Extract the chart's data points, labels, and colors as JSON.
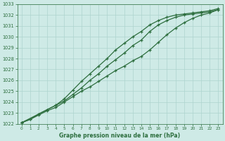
{
  "title": "Graphe pression niveau de la mer (hPa)",
  "xlim": [
    -0.5,
    23.5
  ],
  "ylim": [
    1022,
    1033
  ],
  "yticks": [
    1022,
    1023,
    1024,
    1025,
    1026,
    1027,
    1028,
    1029,
    1030,
    1031,
    1032,
    1033
  ],
  "xticks": [
    0,
    1,
    2,
    3,
    4,
    5,
    6,
    7,
    8,
    9,
    10,
    11,
    12,
    13,
    14,
    15,
    16,
    17,
    18,
    19,
    20,
    21,
    22,
    23
  ],
  "bg_color": "#ceeae6",
  "grid_color": "#aed4ce",
  "line_color": "#2d6e3e",
  "line1_x": [
    0,
    1,
    2,
    3,
    4,
    5,
    6,
    7,
    8,
    9,
    10,
    11,
    12,
    13,
    14,
    15,
    16,
    17,
    18,
    19,
    20,
    21,
    22,
    23
  ],
  "line1": [
    1022.1,
    1022.4,
    1022.8,
    1023.2,
    1023.5,
    1024.0,
    1024.5,
    1025.0,
    1025.4,
    1025.9,
    1026.4,
    1026.9,
    1027.3,
    1027.8,
    1028.2,
    1028.8,
    1029.5,
    1030.2,
    1030.8,
    1031.3,
    1031.7,
    1032.0,
    1032.2,
    1032.5
  ],
  "line2_x": [
    0,
    1,
    2,
    3,
    4,
    5,
    6,
    7,
    8,
    9,
    10,
    11,
    12,
    13,
    14,
    15,
    16,
    17,
    18,
    19,
    20,
    21,
    22,
    23
  ],
  "line2": [
    1022.1,
    1022.4,
    1022.9,
    1023.3,
    1023.7,
    1024.1,
    1024.7,
    1025.3,
    1026.0,
    1026.6,
    1027.3,
    1027.9,
    1028.5,
    1029.2,
    1029.7,
    1030.5,
    1031.1,
    1031.5,
    1031.8,
    1032.0,
    1032.1,
    1032.2,
    1032.3,
    1032.5
  ],
  "line3_x": [
    0,
    2,
    3,
    4,
    5,
    6,
    7,
    8,
    9,
    10,
    11,
    12,
    13,
    14,
    15,
    16,
    17,
    18,
    19,
    20,
    21,
    22,
    23
  ],
  "line3": [
    1022.1,
    1022.9,
    1023.3,
    1023.7,
    1024.3,
    1025.1,
    1025.9,
    1026.6,
    1027.3,
    1028.0,
    1028.8,
    1029.4,
    1030.0,
    1030.5,
    1031.1,
    1031.5,
    1031.8,
    1032.0,
    1032.1,
    1032.2,
    1032.3,
    1032.4,
    1032.6
  ]
}
